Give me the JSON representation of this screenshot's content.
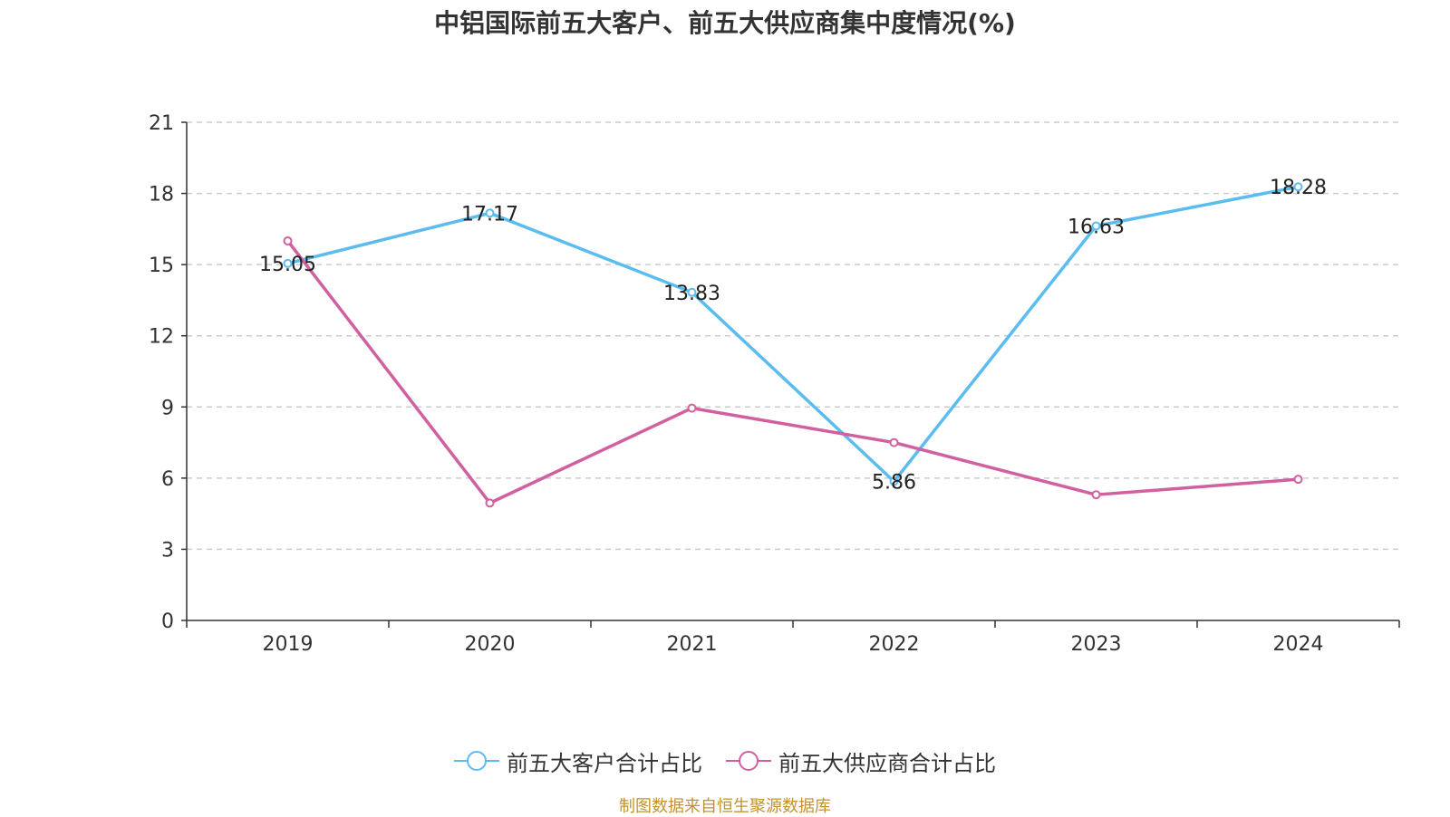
{
  "chart_data": {
    "type": "line",
    "title": "中铝国际前五大客户、前五大供应商集中度情况(%)",
    "categories": [
      "2019",
      "2020",
      "2021",
      "2022",
      "2023",
      "2024"
    ],
    "ylim": [
      0,
      21
    ],
    "yticks": [
      "0",
      "3",
      "6",
      "9",
      "12",
      "15",
      "18",
      "21"
    ],
    "grid": "horizontal-dashed",
    "legend_position": "bottom-center",
    "series": [
      {
        "name": "前五大客户合计占比",
        "color": "#5bbcf0",
        "values": [
          15.05,
          17.17,
          13.83,
          5.86,
          16.63,
          18.28
        ],
        "labels": [
          "15.05",
          "17.17",
          "13.83",
          "5.86",
          "16.63",
          "18.28"
        ]
      },
      {
        "name": "前五大供应商合计占比",
        "color": "#d0609f",
        "values": [
          16.0,
          4.95,
          8.95,
          7.5,
          5.3,
          5.95
        ],
        "labels": []
      }
    ],
    "source": "制图数据来自恒生聚源数据库"
  }
}
